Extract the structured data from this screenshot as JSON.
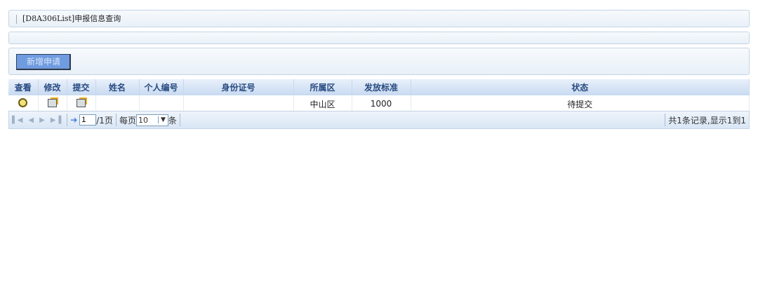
{
  "title": "[D8A306List]申报信息查询",
  "toolbar": {
    "add_label": "新增申请"
  },
  "table": {
    "headers": [
      "查看",
      "修改",
      "提交",
      "姓名",
      "个人编号",
      "身份证号",
      "所属区",
      "发放标准",
      "状态"
    ],
    "rows": [
      {
        "name": "",
        "person_id": "",
        "id_card": "",
        "district": "中山区",
        "standard": "1000",
        "status": "待提交"
      }
    ]
  },
  "pager": {
    "page": "1",
    "total_pages": "/1页",
    "per_page_label": "每页",
    "per_page": "10",
    "unit": "条",
    "summary": "共1条记录,显示1到1"
  },
  "colors": {
    "button": "#6f9be0",
    "header_text": "#274a80"
  }
}
